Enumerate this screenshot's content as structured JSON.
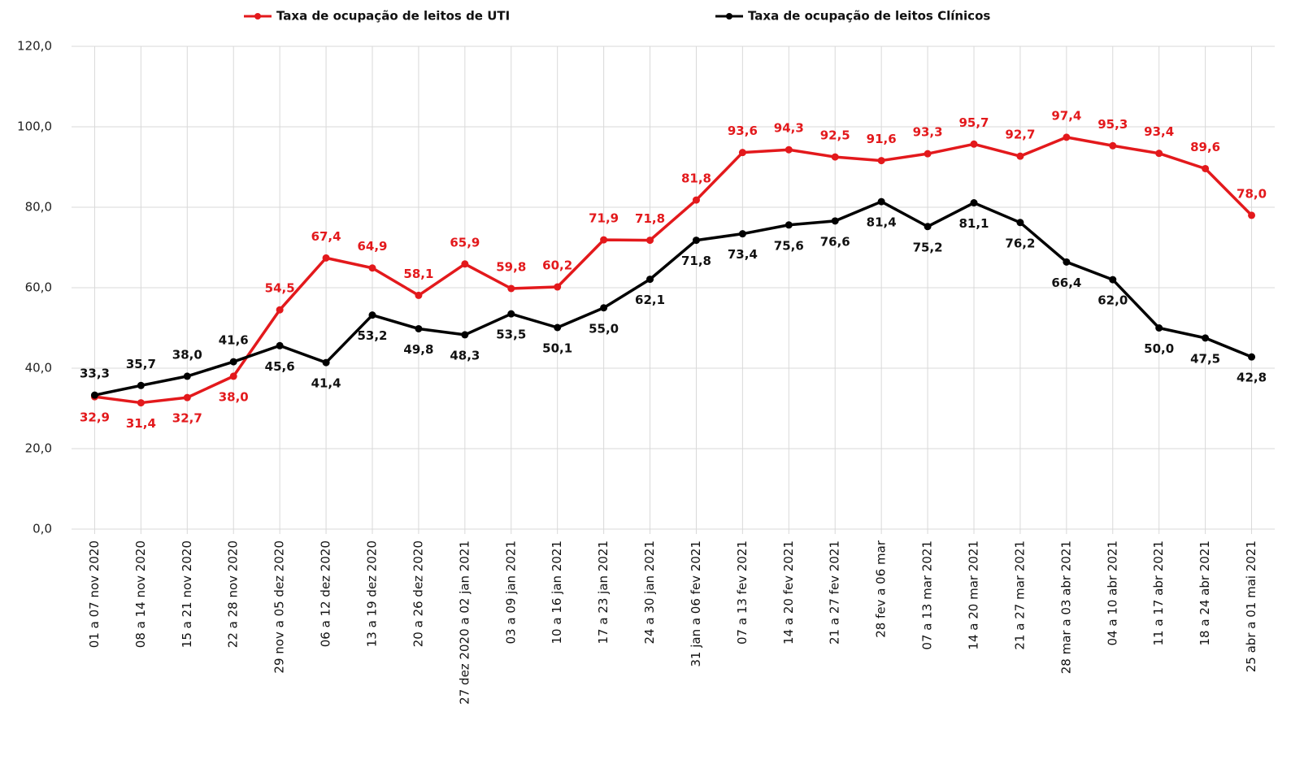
{
  "chart_data": {
    "type": "line",
    "categories": [
      "01 a 07 nov 2020",
      "08 a 14 nov 2020",
      "15 a 21 nov 2020",
      "22 a 28 nov 2020",
      "29 nov a 05 dez 2020",
      "06 a 12 dez 2020",
      "13 a 19 dez 2020",
      "20 a 26 dez 2020",
      "27 dez 2020 a 02 jan 2021",
      "03 a 09 jan 2021",
      "10 a 16 jan 2021",
      "17 a 23 jan 2021",
      "24 a 30 jan 2021",
      "31 jan a 06 fev 2021",
      "07 a 13 fev 2021",
      "14 a 20 fev 2021",
      "21 a 27 fev 2021",
      "28 fev a 06 mar",
      "07 a 13 mar 2021",
      "14 a 20 mar 2021",
      "21 a 27 mar 2021",
      "28 mar a 03 abr 2021",
      "04 a 10 abr 2021",
      "11 a 17 abr 2021",
      "18 a 24 abr 2021",
      "25 abr a 01 mai 2021"
    ],
    "series": [
      {
        "name": "Taxa de ocupação de leitos de UTI",
        "color": "#e3191c",
        "values": [
          32.9,
          31.4,
          32.7,
          38.0,
          54.5,
          67.4,
          64.9,
          58.1,
          65.9,
          59.8,
          60.2,
          71.9,
          71.8,
          81.8,
          93.6,
          94.3,
          92.5,
          91.6,
          93.3,
          95.7,
          92.7,
          97.4,
          95.3,
          93.4,
          89.6,
          78.0
        ],
        "value_labels": [
          "32,9",
          "31,4",
          "32,7",
          "38,0",
          "54,5",
          "67,4",
          "64,9",
          "58,1",
          "65,9",
          "59,8",
          "60,2",
          "71,9",
          "71,8",
          "81,8",
          "93,6",
          "94,3",
          "92,5",
          "91,6",
          "93,3",
          "95,7",
          "92,7",
          "97,4",
          "95,3",
          "93,4",
          "89,6",
          "78,0"
        ]
      },
      {
        "name": "Taxa de ocupação de leitos Clínicos",
        "color": "#000000",
        "values": [
          33.3,
          35.7,
          38.0,
          41.6,
          45.6,
          41.4,
          53.2,
          49.8,
          48.3,
          53.5,
          50.1,
          55.0,
          62.1,
          71.8,
          73.4,
          75.6,
          76.6,
          81.4,
          75.2,
          81.1,
          76.2,
          66.4,
          62.0,
          50.0,
          47.5,
          42.8
        ],
        "value_labels": [
          "33,3",
          "35,7",
          "38,0",
          "41,6",
          "45,6",
          "41,4",
          "53,2",
          "49,8",
          "48,3",
          "53,5",
          "50,1",
          "55,0",
          "62,1",
          "71,8",
          "73,4",
          "75,6",
          "76,6",
          "81,4",
          "75,2",
          "81,1",
          "76,2",
          "66,4",
          "62,0",
          "50,0",
          "47,5",
          "42,8"
        ]
      }
    ],
    "ylim": [
      0,
      120
    ],
    "yticks": [
      {
        "value": 0,
        "label": "0,0"
      },
      {
        "value": 20,
        "label": "20,0"
      },
      {
        "value": 40,
        "label": "40,0"
      },
      {
        "value": 60,
        "label": "60,0"
      },
      {
        "value": 80,
        "label": "80,0"
      },
      {
        "value": 100,
        "label": "100,0"
      },
      {
        "value": 120,
        "label": "120,0"
      }
    ],
    "grid": true,
    "legend": "top"
  }
}
